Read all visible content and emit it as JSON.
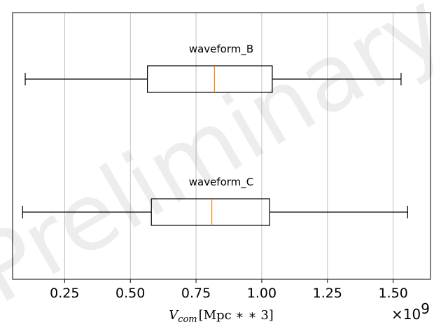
{
  "chart_data": {
    "type": "box",
    "orientation": "horizontal",
    "watermark": "Preliminary",
    "xlabel": "V_com [Mpc ∗∗ 3]",
    "xlabel_parts": {
      "main": "V",
      "subscript": "com",
      "rest": "[Mpc ∗ ∗ 3]"
    },
    "offset_text": {
      "base": "×10",
      "exponent": "9"
    },
    "xlim": [
      0.052,
      1.642
    ],
    "xticks": [
      0.25,
      0.5,
      0.75,
      1.0,
      1.25,
      1.5
    ],
    "xtick_labels": [
      "0.25",
      "0.50",
      "0.75",
      "1.00",
      "1.25",
      "1.50"
    ],
    "grid": "x",
    "colors": {
      "box": "#000000",
      "median": "#ff7f0e",
      "grid": "#b0b0b0",
      "frame": "#000000"
    },
    "series": [
      {
        "name": "waveform_B",
        "whisker_low": 0.1,
        "q1": 0.565,
        "median": 0.82,
        "q3": 1.04,
        "whisker_high": 1.53
      },
      {
        "name": "waveform_C",
        "whisker_low": 0.09,
        "q1": 0.58,
        "median": 0.81,
        "q3": 1.03,
        "whisker_high": 1.555
      }
    ]
  }
}
